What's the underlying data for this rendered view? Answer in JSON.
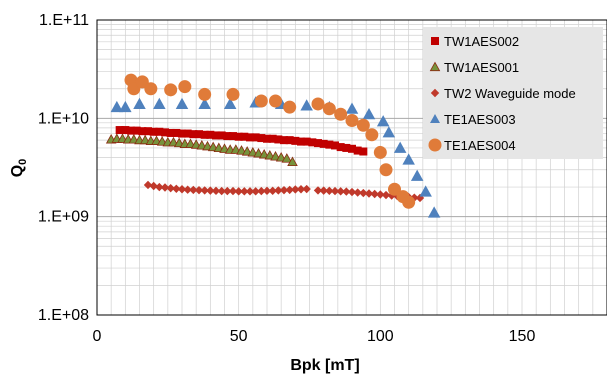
{
  "chart_data": {
    "type": "scatter",
    "xlabel": "Bpk [mT]",
    "ylabel": "Q",
    "ylabel_subscript": "0",
    "xlim": [
      0,
      180
    ],
    "ylim": [
      100000000,
      100000000000
    ],
    "y_scale": "log",
    "x_ticks": [
      0,
      50,
      100,
      150
    ],
    "x_tick_labels": [
      "0",
      "50",
      "100",
      "150"
    ],
    "y_ticks": [
      100000000,
      1000000000,
      10000000000,
      100000000000
    ],
    "y_tick_labels": [
      "1.E+08",
      "1.E+09",
      "1.E+10",
      "1.E+11"
    ],
    "grid": "both",
    "legend_position": "top-right",
    "series": [
      {
        "name": "TW1AES002",
        "color": "#c00000",
        "marker": "square",
        "points": [
          [
            8,
            7600000000.0
          ],
          [
            10,
            7600000000.0
          ],
          [
            12,
            7500000000.0
          ],
          [
            14,
            7500000000.0
          ],
          [
            16,
            7400000000.0
          ],
          [
            18,
            7400000000.0
          ],
          [
            20,
            7300000000.0
          ],
          [
            22,
            7300000000.0
          ],
          [
            24,
            7200000000.0
          ],
          [
            26,
            7100000000.0
          ],
          [
            28,
            7100000000.0
          ],
          [
            30,
            7000000000.0
          ],
          [
            32,
            7000000000.0
          ],
          [
            34,
            6900000000.0
          ],
          [
            36,
            6900000000.0
          ],
          [
            38,
            6800000000.0
          ],
          [
            40,
            6800000000.0
          ],
          [
            42,
            6700000000.0
          ],
          [
            44,
            6700000000.0
          ],
          [
            46,
            6600000000.0
          ],
          [
            48,
            6600000000.0
          ],
          [
            50,
            6500000000.0
          ],
          [
            52,
            6500000000.0
          ],
          [
            54,
            6400000000.0
          ],
          [
            56,
            6400000000.0
          ],
          [
            58,
            6300000000.0
          ],
          [
            60,
            6200000000.0
          ],
          [
            62,
            6200000000.0
          ],
          [
            64,
            6100000000.0
          ],
          [
            66,
            6000000000.0
          ],
          [
            68,
            6000000000.0
          ],
          [
            70,
            5900000000.0
          ],
          [
            72,
            5800000000.0
          ],
          [
            74,
            5800000000.0
          ],
          [
            76,
            5700000000.0
          ],
          [
            78,
            5600000000.0
          ],
          [
            80,
            5500000000.0
          ],
          [
            82,
            5400000000.0
          ],
          [
            84,
            5300000000.0
          ],
          [
            86,
            5100000000.0
          ],
          [
            88,
            5000000000.0
          ],
          [
            90,
            4900000000.0
          ],
          [
            92,
            4700000000.0
          ],
          [
            94,
            4600000000.0
          ]
        ]
      },
      {
        "name": "TW1AES001",
        "color": "#77933c",
        "marker": "triangle",
        "points": [
          [
            5,
            6100000000.0
          ],
          [
            7,
            6200000000.0
          ],
          [
            9,
            6200000000.0
          ],
          [
            11,
            6100000000.0
          ],
          [
            13,
            6100000000.0
          ],
          [
            15,
            6000000000.0
          ],
          [
            17,
            6000000000.0
          ],
          [
            19,
            5900000000.0
          ],
          [
            21,
            5900000000.0
          ],
          [
            23,
            5800000000.0
          ],
          [
            25,
            5700000000.0
          ],
          [
            27,
            5700000000.0
          ],
          [
            29,
            5600000000.0
          ],
          [
            31,
            5500000000.0
          ],
          [
            33,
            5500000000.0
          ],
          [
            35,
            5400000000.0
          ],
          [
            37,
            5300000000.0
          ],
          [
            39,
            5200000000.0
          ],
          [
            41,
            5100000000.0
          ],
          [
            43,
            5000000000.0
          ],
          [
            45,
            4900000000.0
          ],
          [
            47,
            4800000000.0
          ],
          [
            49,
            4800000000.0
          ],
          [
            51,
            4700000000.0
          ],
          [
            53,
            4600000000.0
          ],
          [
            55,
            4500000000.0
          ],
          [
            57,
            4400000000.0
          ],
          [
            59,
            4300000000.0
          ],
          [
            61,
            4200000000.0
          ],
          [
            63,
            4100000000.0
          ],
          [
            65,
            4000000000.0
          ],
          [
            67,
            3900000000.0
          ],
          [
            69,
            3600000000.0
          ]
        ]
      },
      {
        "name": "TW2 Waveguide mode",
        "color": "#c0392b",
        "marker": "diamond",
        "points": [
          [
            18,
            2100000000.0
          ],
          [
            20,
            2050000000.0
          ],
          [
            22,
            2000000000.0
          ],
          [
            24,
            1980000000.0
          ],
          [
            26,
            1950000000.0
          ],
          [
            28,
            1920000000.0
          ],
          [
            30,
            1900000000.0
          ],
          [
            32,
            1880000000.0
          ],
          [
            34,
            1870000000.0
          ],
          [
            36,
            1860000000.0
          ],
          [
            38,
            1850000000.0
          ],
          [
            40,
            1840000000.0
          ],
          [
            42,
            1830000000.0
          ],
          [
            44,
            1820000000.0
          ],
          [
            46,
            1820000000.0
          ],
          [
            48,
            1820000000.0
          ],
          [
            50,
            1810000000.0
          ],
          [
            52,
            1810000000.0
          ],
          [
            54,
            1810000000.0
          ],
          [
            56,
            1810000000.0
          ],
          [
            58,
            1820000000.0
          ],
          [
            60,
            1830000000.0
          ],
          [
            62,
            1830000000.0
          ],
          [
            64,
            1850000000.0
          ],
          [
            66,
            1860000000.0
          ],
          [
            68,
            1870000000.0
          ],
          [
            70,
            1890000000.0
          ],
          [
            72,
            1900000000.0
          ],
          [
            74,
            1910000000.0
          ],
          [
            78,
            1850000000.0
          ],
          [
            80,
            1840000000.0
          ],
          [
            82,
            1830000000.0
          ],
          [
            84,
            1820000000.0
          ],
          [
            86,
            1810000000.0
          ],
          [
            88,
            1800000000.0
          ],
          [
            90,
            1780000000.0
          ],
          [
            92,
            1760000000.0
          ],
          [
            94,
            1740000000.0
          ],
          [
            96,
            1720000000.0
          ],
          [
            98,
            1700000000.0
          ],
          [
            100,
            1680000000.0
          ],
          [
            102,
            1660000000.0
          ],
          [
            104,
            1640000000.0
          ],
          [
            106,
            1620000000.0
          ],
          [
            108,
            1600000000.0
          ],
          [
            110,
            1580000000.0
          ],
          [
            112,
            1560000000.0
          ],
          [
            114,
            1550000000.0
          ]
        ]
      },
      {
        "name": "TE1AES003",
        "color": "#4f81bd",
        "marker": "triangle",
        "points": [
          [
            7,
            13000000000.0
          ],
          [
            10,
            13000000000.0
          ],
          [
            15,
            14000000000.0
          ],
          [
            22,
            14000000000.0
          ],
          [
            30,
            14000000000.0
          ],
          [
            38,
            14000000000.0
          ],
          [
            47,
            14000000000.0
          ],
          [
            56,
            14500000000.0
          ],
          [
            65,
            14000000000.0
          ],
          [
            74,
            13500000000.0
          ],
          [
            82,
            13000000000.0
          ],
          [
            90,
            12500000000.0
          ],
          [
            96,
            11000000000.0
          ],
          [
            101,
            9300000000.0
          ],
          [
            103,
            7200000000.0
          ],
          [
            107,
            5000000000.0
          ],
          [
            110,
            3800000000.0
          ],
          [
            113,
            2600000000.0
          ],
          [
            116,
            1800000000.0
          ],
          [
            119,
            1100000000.0
          ]
        ]
      },
      {
        "name": "TE1AES004",
        "color": "#e07b39",
        "marker": "circle",
        "points": [
          [
            12,
            24500000000.0
          ],
          [
            13,
            20000000000.0
          ],
          [
            16,
            23500000000.0
          ],
          [
            19,
            20000000000.0
          ],
          [
            26,
            19500000000.0
          ],
          [
            31,
            21000000000.0
          ],
          [
            38,
            17500000000.0
          ],
          [
            48,
            17500000000.0
          ],
          [
            58,
            15000000000.0
          ],
          [
            63,
            15000000000.0
          ],
          [
            68,
            13000000000.0
          ],
          [
            78,
            14000000000.0
          ],
          [
            82,
            12500000000.0
          ],
          [
            86,
            11000000000.0
          ],
          [
            90,
            9500000000.0
          ],
          [
            94,
            8500000000.0
          ],
          [
            97,
            6800000000.0
          ],
          [
            100,
            4500000000.0
          ],
          [
            102,
            3000000000.0
          ],
          [
            105,
            1900000000.0
          ],
          [
            108,
            1600000000.0
          ],
          [
            110,
            1400000000.0
          ]
        ]
      }
    ]
  }
}
